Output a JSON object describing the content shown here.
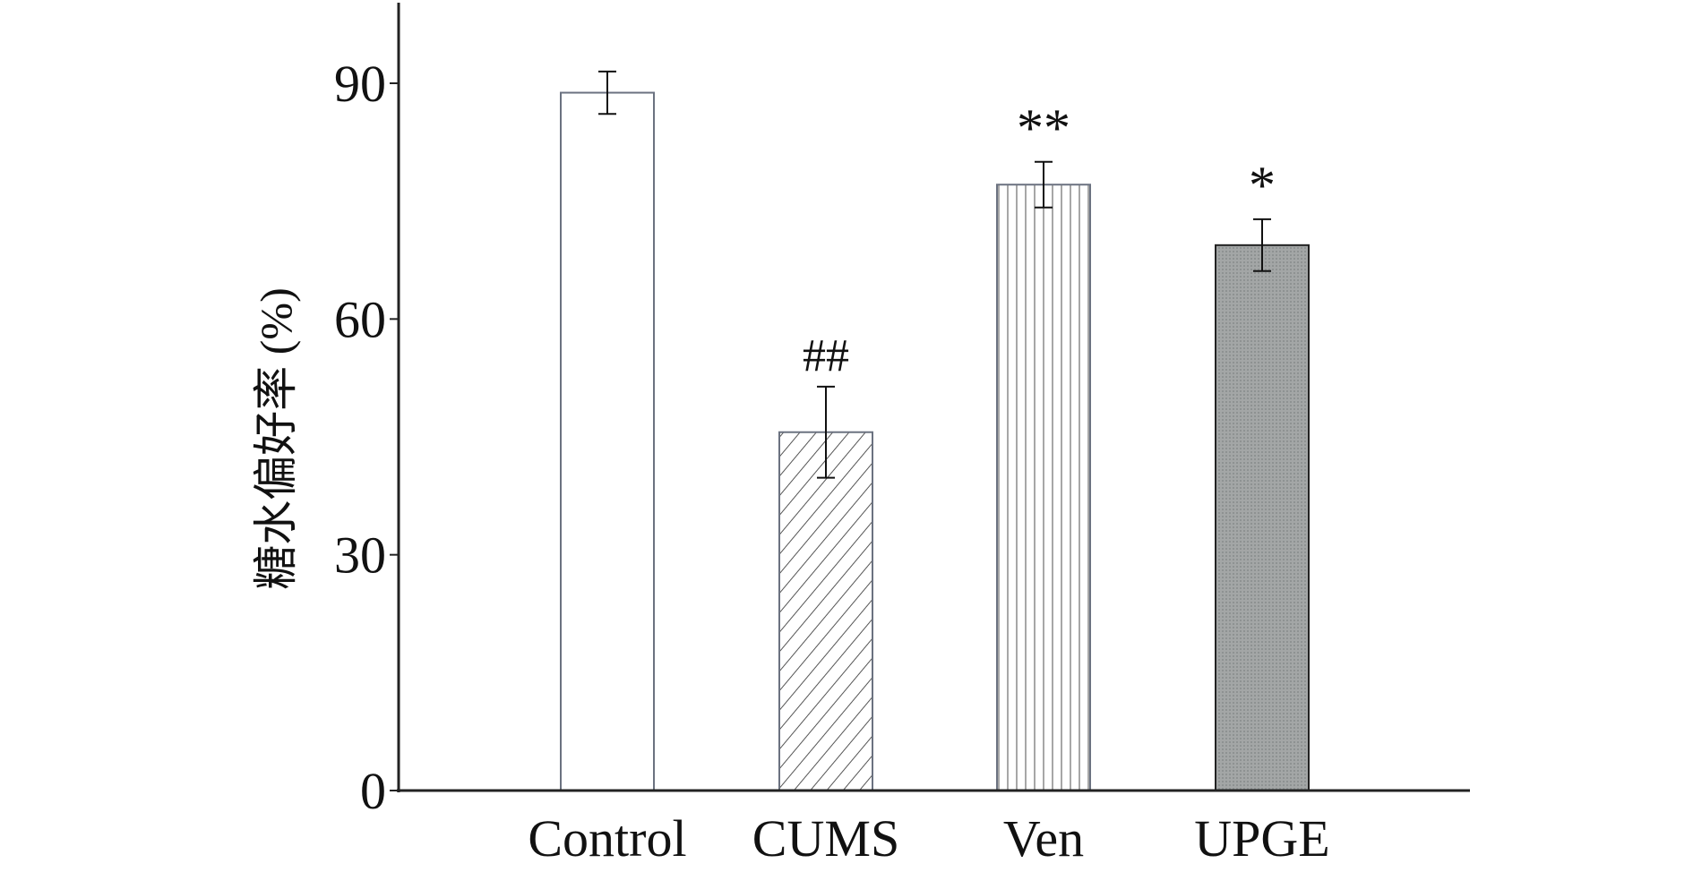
{
  "chart_data": {
    "type": "bar",
    "title": "",
    "xlabel": "",
    "ylabel": "糖水偏好率 (%)",
    "ylim": [
      0,
      100
    ],
    "yticks": [
      0,
      30,
      60,
      90
    ],
    "categories": [
      "Control",
      "CUMS",
      "Ven",
      "UPGE"
    ],
    "values": [
      88.8,
      45.6,
      77.1,
      69.4
    ],
    "errors": [
      2.7,
      5.8,
      2.9,
      3.3
    ],
    "annotations": [
      "",
      "##",
      "**",
      "*"
    ],
    "patterns": [
      "none",
      "diagonal",
      "vertical",
      "dotted-gray"
    ],
    "grid": false,
    "colors": {
      "axis": "#222222",
      "bar_edge": "#6b7280",
      "fill_gray": "#a3a6a6"
    }
  }
}
